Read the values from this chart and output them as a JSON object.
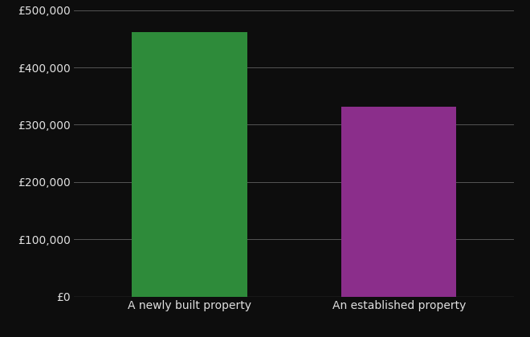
{
  "categories": [
    "A newly built property",
    "An established property"
  ],
  "values": [
    462000,
    332000
  ],
  "bar_colors": [
    "#2e8b3a",
    "#8b2e8b"
  ],
  "background_color": "#0d0d0d",
  "text_color": "#e0e0e0",
  "grid_color": "#555555",
  "ylim": [
    0,
    500000
  ],
  "yticks": [
    0,
    100000,
    200000,
    300000,
    400000,
    500000
  ],
  "ytick_labels": [
    "£0",
    "£100,000",
    "£200,000",
    "£300,000",
    "£400,000",
    "£500,000"
  ],
  "bar_width": 0.55,
  "tick_fontsize": 10,
  "label_fontsize": 10
}
